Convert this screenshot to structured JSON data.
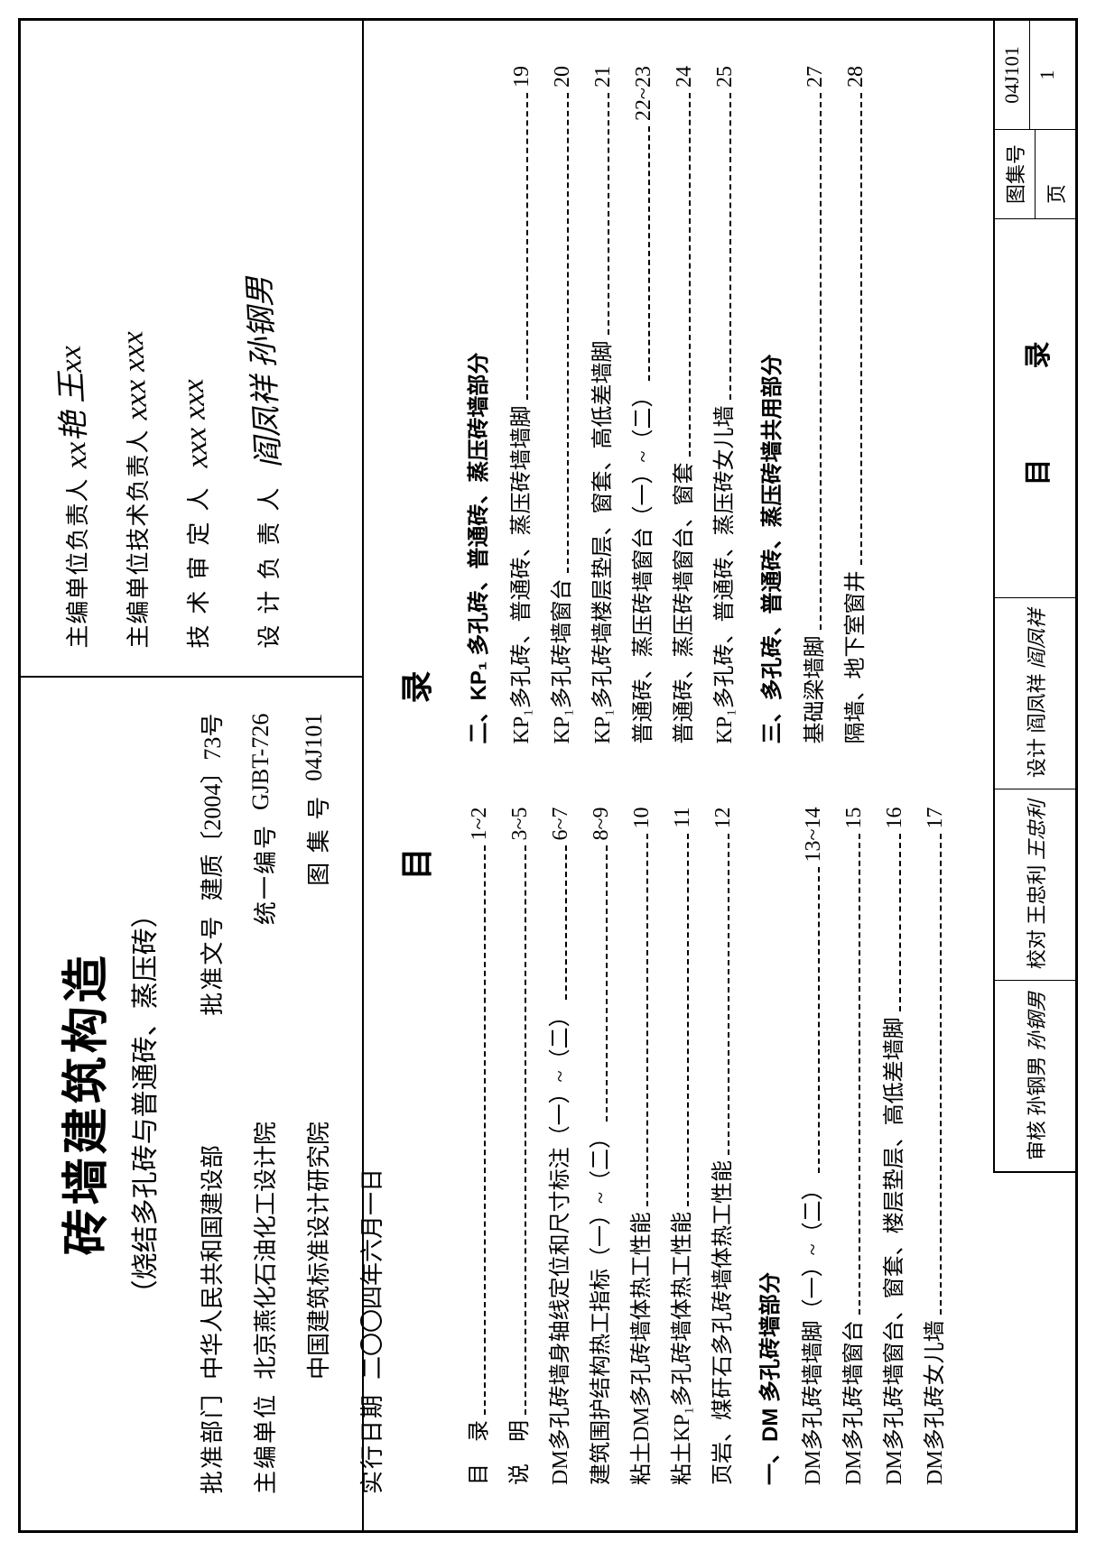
{
  "title": {
    "main": "砖墙建筑构造",
    "sub": "（烧结多孔砖与普通砖、蒸压砖）"
  },
  "info": {
    "approval_dept_label": "批准部门",
    "approval_dept": "中华人民共和国建设部",
    "approval_no_label": "批准文号",
    "approval_no": "建质〔2004〕73号",
    "editor_label": "主编单位",
    "editor1": "北京燕化石油化工设计院",
    "editor2": "中国建筑标准设计研究院",
    "unified_no_label": "统一编号",
    "unified_no": "GJBT-726",
    "date_label": "实行日期",
    "date": "二〇〇四年六月一日",
    "atlas_no_label": "图 集 号",
    "atlas_no": "04J101"
  },
  "signatures": {
    "s1_label": "主编单位负责人",
    "s1_sig": "xx艳  王xx",
    "s2_label": "主编单位技术负责人",
    "s2_sig": "xxx  xxx",
    "s3_label": "技术审定人",
    "s3_sig": "xxx  xxx",
    "s4_label": "设计负责人",
    "s4_sig": "阎凤祥  孙钢男"
  },
  "toc": {
    "header": "目录",
    "col1": [
      {
        "text": "目　录",
        "page": "1~2"
      },
      {
        "text": "说　明",
        "page": "3~5"
      },
      {
        "text": "DM多孔砖墙身轴线定位和尺寸标注（一）~（二）",
        "page": "6~7"
      },
      {
        "text": "建筑围护结构热工指标（一）~（二）",
        "page": "8~9"
      },
      {
        "text": "粘土DM多孔砖墙体热工性能",
        "page": "10"
      },
      {
        "text": "粘土KP₁多孔砖墙体热工性能",
        "page": "11"
      },
      {
        "text": "页岩、煤矸石多孔砖墙体热工性能",
        "page": "12"
      }
    ],
    "sec1_head": "一、DM 多孔砖墙部分",
    "col1b": [
      {
        "text": "DM多孔砖墙墙脚（一）~（二）",
        "page": "13~14"
      },
      {
        "text": "DM多孔砖墙窗台",
        "page": "15"
      },
      {
        "text": "DM多孔砖墙窗台、窗套、楼层垫层、高低差墙脚",
        "page": "16"
      },
      {
        "text": "DM多孔砖女儿墙",
        "page": "17"
      }
    ],
    "sec2_head": "二、KP₁ 多孔砖、普通砖、蒸压砖墙部分",
    "col2": [
      {
        "text": "KP₁多孔砖、普通砖、蒸压砖墙墙脚",
        "page": "19"
      },
      {
        "text": "KP₁多孔砖墙窗台",
        "page": "20"
      },
      {
        "text": "KP₁多孔砖墙楼层垫层、窗套、高低差墙脚",
        "page": "21"
      },
      {
        "text": "普通砖、蒸压砖墙窗台（一）~（二）",
        "page": "22~23"
      },
      {
        "text": "普通砖、蒸压砖墙窗台、窗套",
        "page": "24"
      },
      {
        "text": "KP₁多孔砖、普通砖、蒸压砖女儿墙",
        "page": "25"
      }
    ],
    "sec3_head": "三、多孔砖、普通砖、蒸压砖墙共用部分",
    "col2b": [
      {
        "text": "基础梁墙脚",
        "page": "27"
      },
      {
        "text": "隔墙、地下室窗井",
        "page": "28"
      }
    ]
  },
  "footer": {
    "shenhe_label": "审核",
    "shenhe_name": "孙钢男",
    "shenhe_sig": "孙钢男",
    "jiaodui_label": "校对",
    "jiaodui_name": "王忠利",
    "jiaodui_sig": "王忠利",
    "sheji_label": "设计",
    "sheji_name": "阎凤祥",
    "sheji_sig": "阎凤祥",
    "title": "目录",
    "atlas_label": "图集号",
    "atlas_no": "04J101",
    "page_label": "页",
    "page_no": "1"
  }
}
